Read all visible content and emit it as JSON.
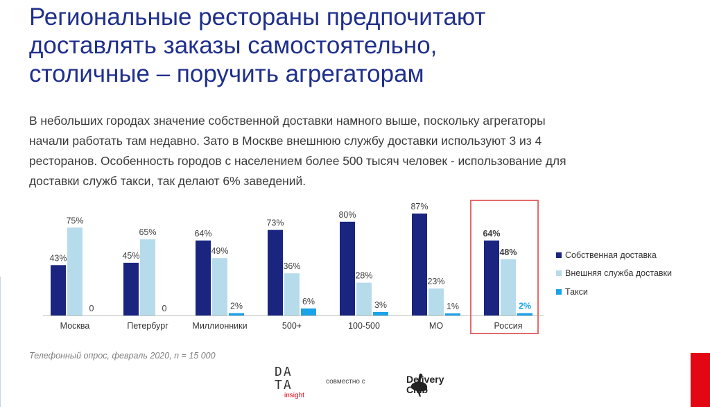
{
  "title_lines": [
    "Региональные рестораны предпочитают",
    "доставлять заказы самостоятельно,",
    "столичные – поручить агрегаторам"
  ],
  "intro_lines": [
    "В небольших городах значение собственной доставки намного выше, поскольку агрегаторы",
    "начали работать там недавно. Зато в Москве внешнюю службу доставки используют 3 из 4",
    "ресторанов. Особенность городов с населением более 500 тысяч человек  - использование для",
    "доставки служб такси, так делают 6% заведений."
  ],
  "source": "Телефонный опрос, февраль 2020, n = 15 000",
  "footer": {
    "data_logo_rows": [
      "DA",
      "TA"
    ],
    "data_logo_sub": "insight",
    "together_text": "совместно с",
    "partner_logo_lines": [
      "Delivery",
      "Club"
    ]
  },
  "colors": {
    "title": "#1f2f8c",
    "own": "#1a2580",
    "external": "#b6dcec",
    "taxi": "#1aa3e8",
    "highlight_border": "#e46a6a",
    "red_accent": "#e30613"
  },
  "chart_data": {
    "type": "bar",
    "categories": [
      "Москва",
      "Петербург",
      "Миллионники",
      "500+",
      "100-500",
      "МО",
      "Россия"
    ],
    "highlighted_category": "Россия",
    "series": [
      {
        "name": "Собственная доставка",
        "values": [
          43,
          45,
          64,
          73,
          80,
          87,
          64
        ],
        "labels": [
          "43%",
          "45%",
          "64%",
          "73%",
          "80%",
          "87%",
          "64%"
        ]
      },
      {
        "name": "Внешняя служба доставки",
        "values": [
          75,
          65,
          49,
          36,
          28,
          23,
          48
        ],
        "labels": [
          "75%",
          "65%",
          "49%",
          "36%",
          "28%",
          "23%",
          "48%"
        ]
      },
      {
        "name": "Такси",
        "values": [
          0,
          0,
          2,
          6,
          3,
          1,
          2
        ],
        "labels": [
          "0",
          "0",
          "2%",
          "6%",
          "3%",
          "1%",
          "2%"
        ]
      }
    ],
    "ylim": [
      0,
      100
    ],
    "grid": false,
    "legend": "right",
    "xlabel": "",
    "ylabel": ""
  }
}
